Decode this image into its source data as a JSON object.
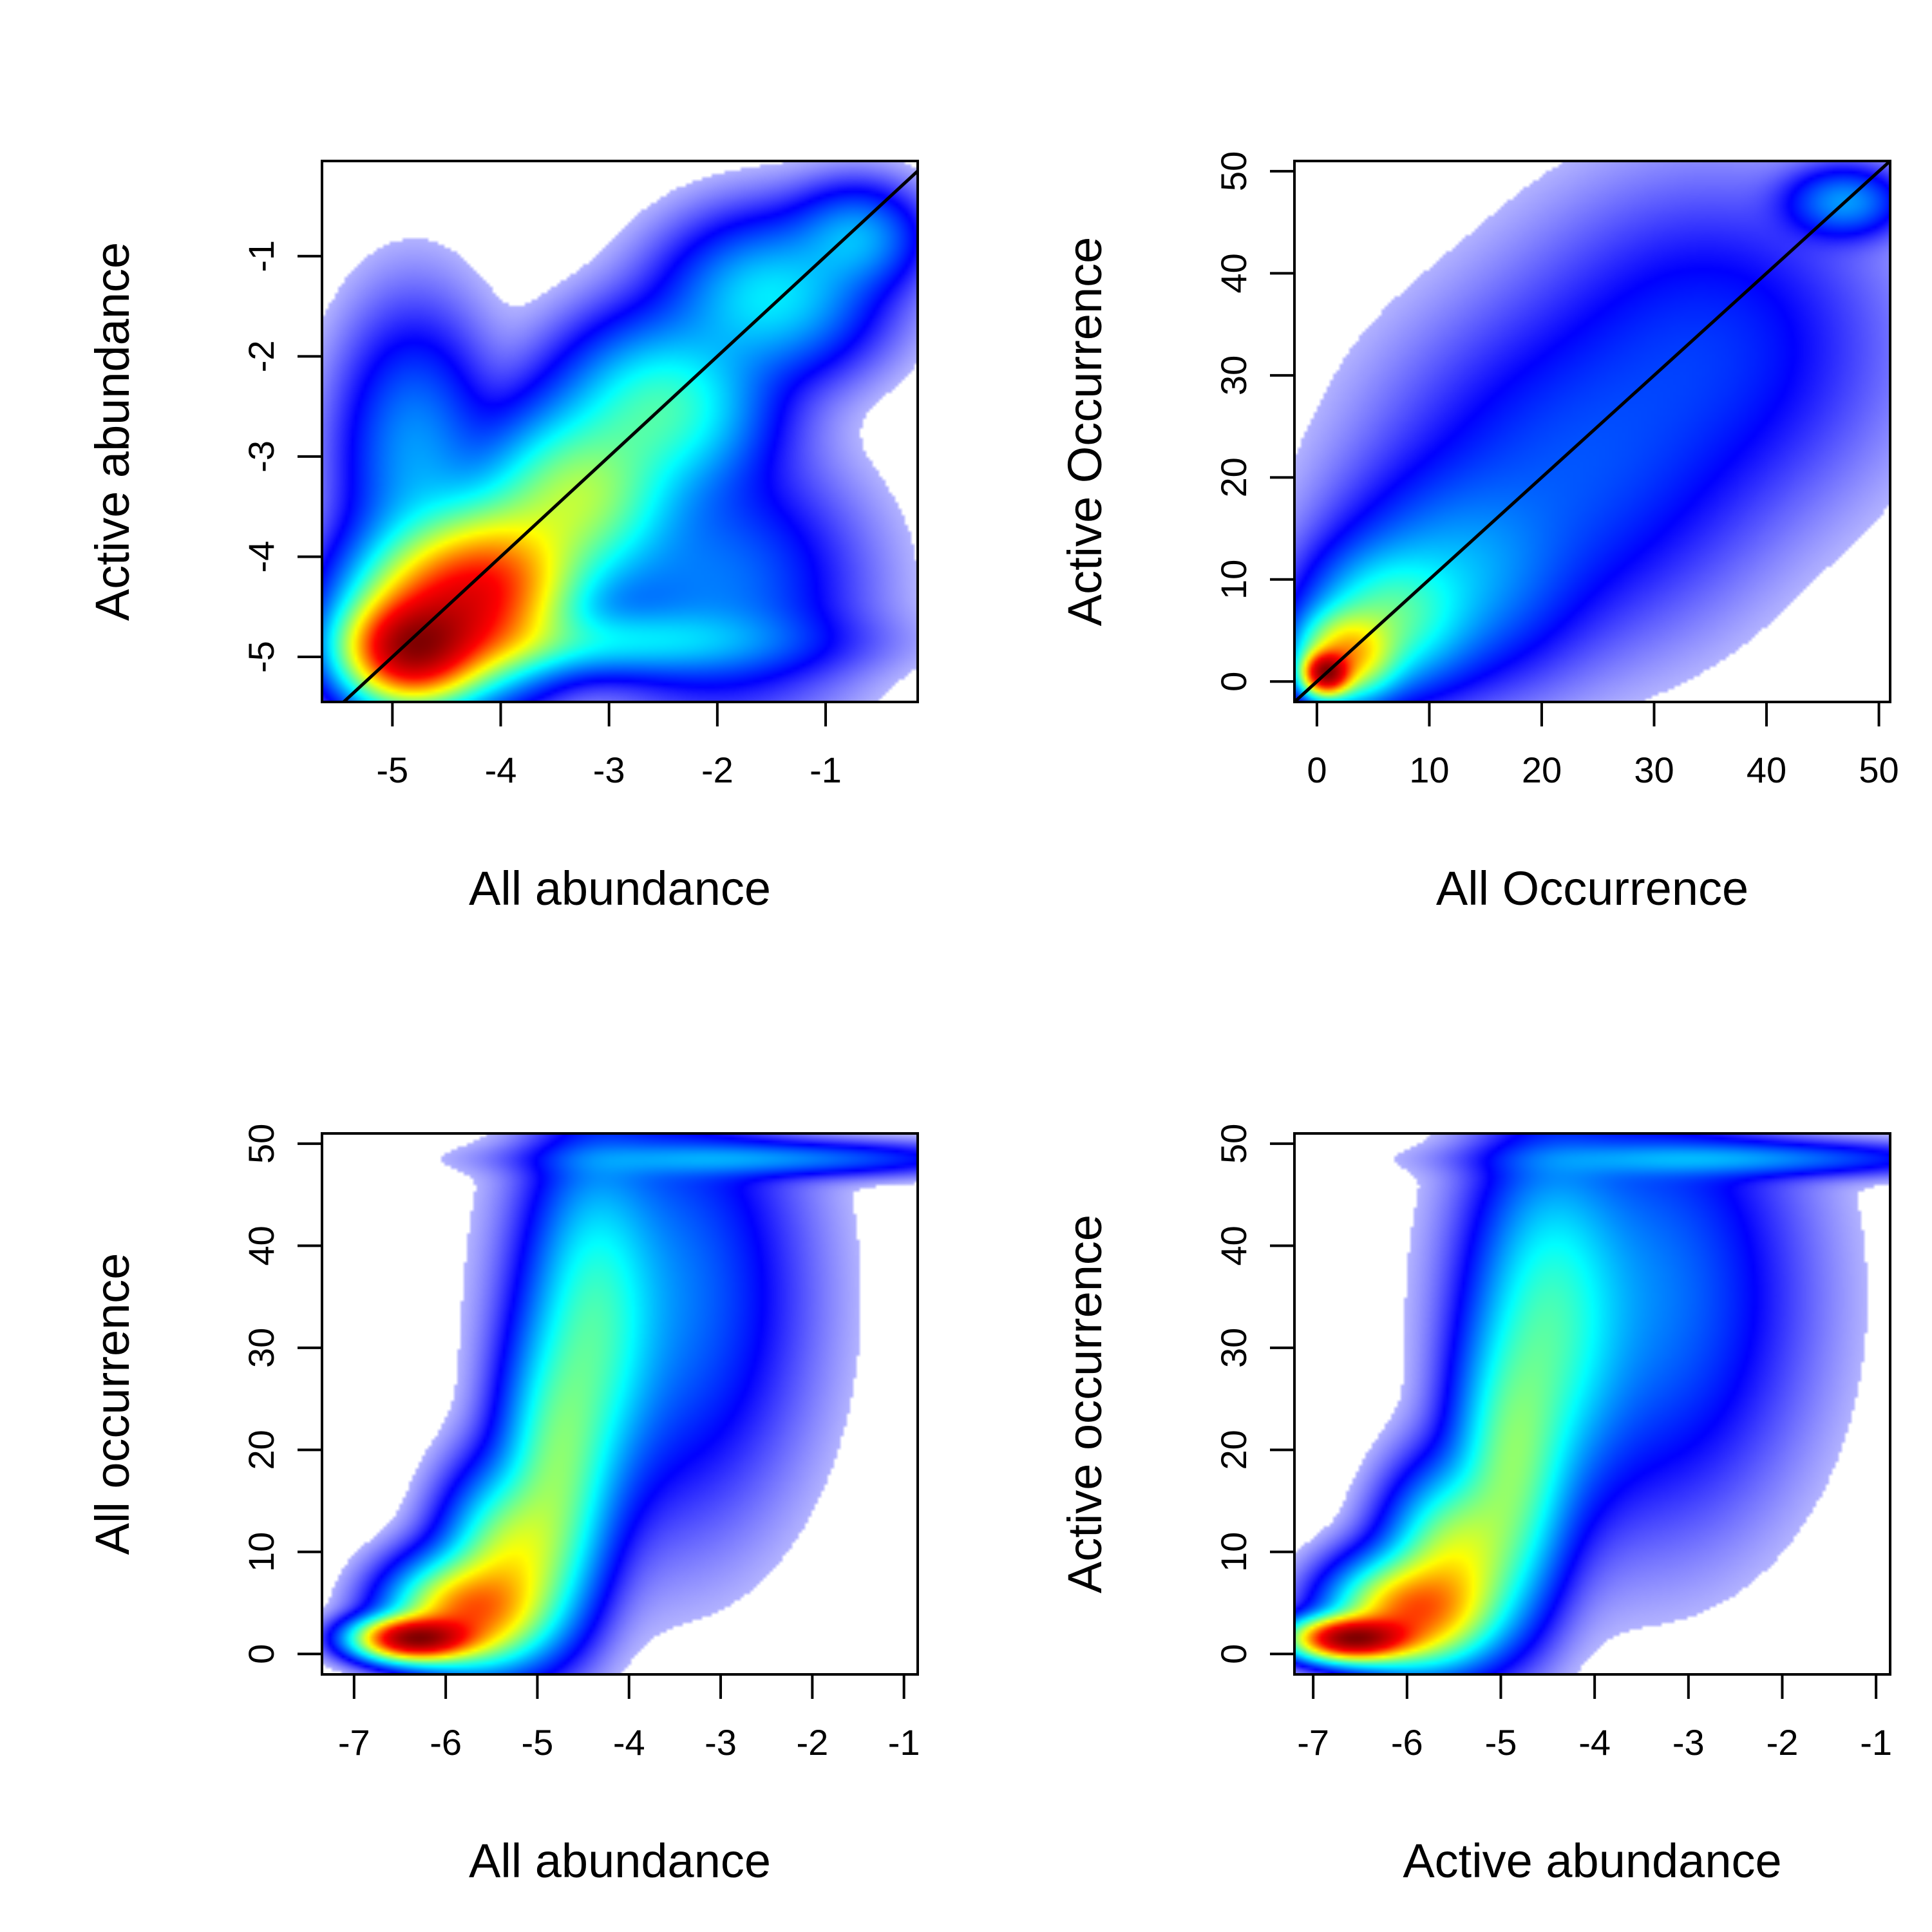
{
  "chart_data": [
    {
      "type": "heatmap",
      "xlabel": "All abundance",
      "ylabel": "Active abundance",
      "xlim": [
        -5.65,
        -0.15
      ],
      "ylim": [
        -5.45,
        -0.05
      ],
      "xticks": [
        "-5",
        "-4",
        "-3",
        "-2",
        "-1"
      ],
      "yticks": [
        "-5",
        "-4",
        "-3",
        "-2",
        "-1"
      ],
      "identity_line": true,
      "density_blobs": [
        {
          "x": -4.85,
          "y": -4.95,
          "sx": 0.35,
          "sy": 0.3,
          "w": 1.0
        },
        {
          "x": -4.5,
          "y": -4.55,
          "sx": 0.5,
          "sy": 0.45,
          "w": 0.75
        },
        {
          "x": -4.0,
          "y": -4.2,
          "sx": 0.45,
          "sy": 0.45,
          "w": 0.5
        },
        {
          "x": -3.3,
          "y": -3.4,
          "sx": 0.5,
          "sy": 0.5,
          "w": 0.35
        },
        {
          "x": -2.5,
          "y": -2.5,
          "sx": 0.55,
          "sy": 0.5,
          "w": 0.25
        },
        {
          "x": -1.5,
          "y": -1.4,
          "sx": 0.55,
          "sy": 0.45,
          "w": 0.18
        },
        {
          "x": -0.7,
          "y": -0.8,
          "sx": 0.35,
          "sy": 0.3,
          "w": 0.12
        },
        {
          "x": -2.0,
          "y": -4.3,
          "sx": 0.7,
          "sy": 0.7,
          "w": 0.1
        },
        {
          "x": -4.8,
          "y": -3.0,
          "sx": 0.4,
          "sy": 0.8,
          "w": 0.12
        },
        {
          "x": -3.2,
          "y": -4.85,
          "sx": 1.1,
          "sy": 0.2,
          "w": 0.15
        }
      ]
    },
    {
      "type": "heatmap",
      "xlabel": "All Occurrence",
      "ylabel": "Active Occurrence",
      "xlim": [
        -2,
        51
      ],
      "ylim": [
        -2,
        51
      ],
      "xticks": [
        "0",
        "10",
        "20",
        "30",
        "40",
        "50"
      ],
      "yticks": [
        "0",
        "10",
        "20",
        "30",
        "40",
        "50"
      ],
      "identity_line": true,
      "density_blobs": [
        {
          "x": 0.8,
          "y": 0.8,
          "sx": 1.2,
          "sy": 1.2,
          "w": 1.0
        },
        {
          "x": 2.5,
          "y": 2.5,
          "sx": 2.5,
          "sy": 2.5,
          "w": 0.45
        },
        {
          "x": 6,
          "y": 6,
          "sx": 4,
          "sy": 4,
          "w": 0.2
        },
        {
          "x": 12,
          "y": 10,
          "sx": 6,
          "sy": 6,
          "w": 0.1
        },
        {
          "x": 22,
          "y": 20,
          "sx": 9,
          "sy": 9,
          "w": 0.06
        },
        {
          "x": 35,
          "y": 33,
          "sx": 9,
          "sy": 9,
          "w": 0.05
        },
        {
          "x": 47,
          "y": 47,
          "sx": 3,
          "sy": 2,
          "w": 0.1
        }
      ]
    },
    {
      "type": "heatmap",
      "xlabel": "All abundance",
      "ylabel": "All occurrence",
      "xlim": [
        -7.35,
        -0.85
      ],
      "ylim": [
        -2,
        51
      ],
      "xticks": [
        "-7",
        "-6",
        "-5",
        "-4",
        "-3",
        "-2",
        "-1"
      ],
      "yticks": [
        "0",
        "10",
        "20",
        "30",
        "40",
        "50"
      ],
      "identity_line": false,
      "density_blobs": [
        {
          "x": -6.35,
          "y": 1.5,
          "sx": 0.35,
          "sy": 1.2,
          "w": 1.0
        },
        {
          "x": -5.8,
          "y": 4,
          "sx": 0.45,
          "sy": 3,
          "w": 0.5
        },
        {
          "x": -5.3,
          "y": 9,
          "sx": 0.4,
          "sy": 5,
          "w": 0.3
        },
        {
          "x": -4.8,
          "y": 18,
          "sx": 0.35,
          "sy": 8,
          "w": 0.2
        },
        {
          "x": -4.4,
          "y": 32,
          "sx": 0.4,
          "sy": 10,
          "w": 0.15
        },
        {
          "x": -3.6,
          "y": 35,
          "sx": 0.8,
          "sy": 12,
          "w": 0.08
        },
        {
          "x": -2.5,
          "y": 48.5,
          "sx": 1.3,
          "sy": 1,
          "w": 0.08
        }
      ]
    },
    {
      "type": "heatmap",
      "xlabel": "Active abundance",
      "ylabel": "Active occurrence",
      "xlim": [
        -7.2,
        -0.85
      ],
      "ylim": [
        -2,
        51
      ],
      "xticks": [
        "-7",
        "-6",
        "-5",
        "-4",
        "-3",
        "-2",
        "-1"
      ],
      "yticks": [
        "0",
        "10",
        "20",
        "30",
        "40",
        "50"
      ],
      "identity_line": false,
      "density_blobs": [
        {
          "x": -6.6,
          "y": 1.5,
          "sx": 0.35,
          "sy": 1.2,
          "w": 1.0
        },
        {
          "x": -6.0,
          "y": 4,
          "sx": 0.45,
          "sy": 3,
          "w": 0.5
        },
        {
          "x": -5.5,
          "y": 9,
          "sx": 0.4,
          "sy": 5,
          "w": 0.3
        },
        {
          "x": -4.9,
          "y": 18,
          "sx": 0.35,
          "sy": 8,
          "w": 0.2
        },
        {
          "x": -4.5,
          "y": 32,
          "sx": 0.45,
          "sy": 10,
          "w": 0.15
        },
        {
          "x": -3.5,
          "y": 35,
          "sx": 0.9,
          "sy": 12,
          "w": 0.08
        },
        {
          "x": -2.5,
          "y": 48.5,
          "sx": 1.3,
          "sy": 1,
          "w": 0.08
        }
      ]
    }
  ],
  "colors": {
    "ramp": [
      "#ffffff",
      "#0000ff",
      "#00ffff",
      "#ffff00",
      "#ff0000",
      "#7f0000"
    ],
    "line": "#000000"
  }
}
